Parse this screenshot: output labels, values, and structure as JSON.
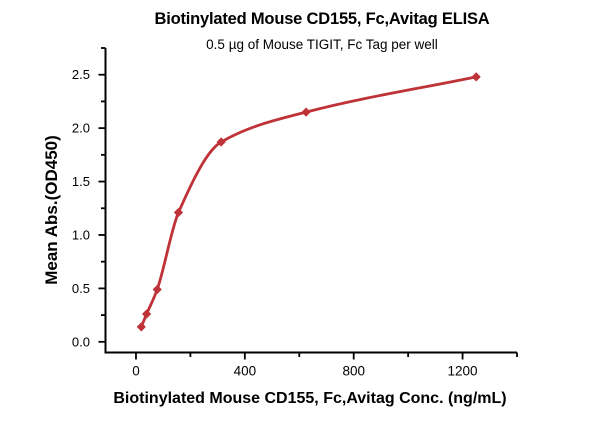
{
  "chart_data": {
    "type": "scatter",
    "title": "Biotinylated Mouse CD155, Fc,Avitag ELISA",
    "subtitle": "0.5 µg of Mouse TIGIT, Fc Tag per well",
    "xlabel": "Biotinylated Mouse CD155, Fc,Avitag Conc. (ng/mL)",
    "ylabel": "Mean Abs.(OD450)",
    "x": [
      19.5,
      39,
      78,
      156,
      313,
      625,
      1250
    ],
    "y": [
      0.14,
      0.26,
      0.49,
      1.21,
      1.87,
      2.15,
      2.48
    ],
    "curve": "smooth-fit-through-points",
    "marker": "diamond",
    "grid": false,
    "legend": "none",
    "xlim": [
      -112,
      1400
    ],
    "ylim": [
      -0.1,
      2.75
    ],
    "x_ticks": {
      "major": [
        0,
        400,
        800,
        1200
      ],
      "labels": [
        "0",
        "400",
        "800",
        "1200"
      ],
      "minor": [
        200,
        600,
        1000,
        1400
      ]
    },
    "y_ticks": {
      "major": [
        0.0,
        0.5,
        1.0,
        1.5,
        2.0,
        2.5
      ],
      "labels": [
        "0.0",
        "0.5",
        "1.0",
        "1.5",
        "2.0",
        "2.5"
      ],
      "minor": [
        0.25,
        0.75,
        1.25,
        1.75,
        2.25,
        2.75
      ]
    },
    "line_color": "#bf3238",
    "marker_color": "#bf3238",
    "axis_color": "#000000",
    "background_color": "#ffffff"
  }
}
